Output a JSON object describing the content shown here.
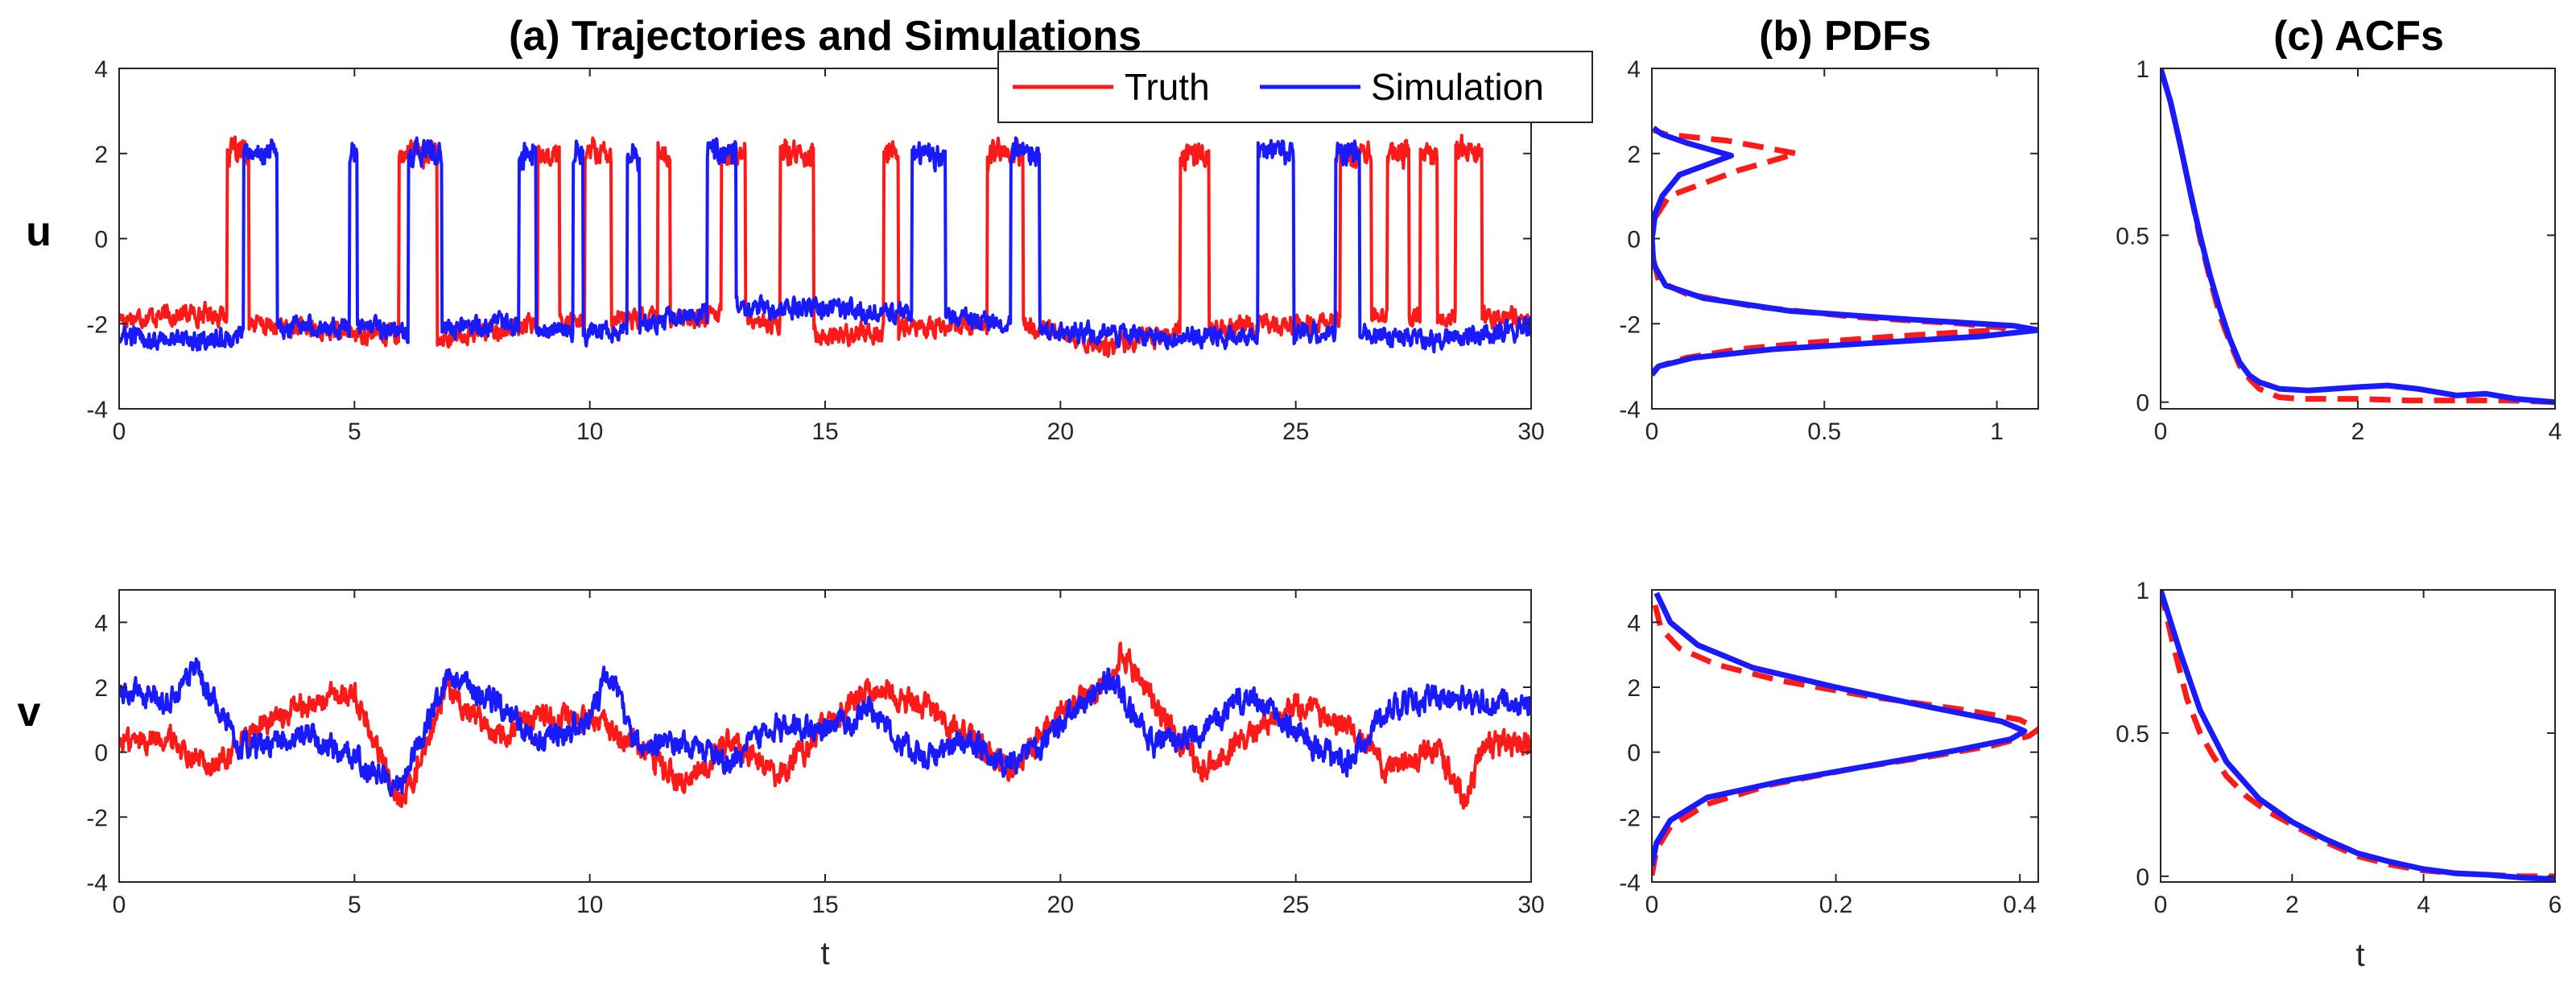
{
  "colors": {
    "truth": "#ff1a1a",
    "simulation": "#1a1aff",
    "axis": "#262626"
  },
  "row_labels": [
    "u",
    "v"
  ],
  "legend": {
    "entries": [
      "Truth",
      "Simulation"
    ]
  },
  "chart_data": [
    {
      "id": "traj_u",
      "type": "line",
      "panel": "a",
      "row": "u",
      "title": "(a) Trajectories and Simulations",
      "xlabel": "",
      "ylabel": "",
      "xlim": [
        0,
        30
      ],
      "ylim": [
        -4,
        4
      ],
      "xticks": [
        0,
        5,
        10,
        15,
        20,
        25,
        30
      ],
      "yticks": [
        -4,
        -2,
        0,
        2,
        4
      ],
      "series": [
        {
          "name": "Truth",
          "kind": "switch",
          "low": -2.0,
          "high": 2.0,
          "noise": 0.18,
          "intervals": [
            [
              2.3,
              2.75
            ],
            [
              5.95,
              6.75
            ],
            [
              8.9,
              9.35
            ],
            [
              9.9,
              10.45
            ],
            [
              11.45,
              11.7
            ],
            [
              12.8,
              13.3
            ],
            [
              14.05,
              14.75
            ],
            [
              16.25,
              16.55
            ],
            [
              18.45,
              19.2
            ],
            [
              22.55,
              23.15
            ],
            [
              25.95,
              26.6
            ],
            [
              26.95,
              27.4
            ],
            [
              27.65,
              28.0
            ],
            [
              28.4,
              28.95
            ]
          ],
          "low_drift": [
            [
              0,
              -1.85
            ],
            [
              2,
              -1.75
            ],
            [
              3,
              -2.05
            ],
            [
              5,
              -2.2
            ],
            [
              7,
              -2.3
            ],
            [
              9,
              -2.0
            ],
            [
              11,
              -1.9
            ],
            [
              13,
              -1.8
            ],
            [
              15,
              -2.3
            ],
            [
              17,
              -2.1
            ],
            [
              19,
              -2.0
            ],
            [
              21,
              -2.5
            ],
            [
              23,
              -2.1
            ],
            [
              25,
              -2.0
            ],
            [
              27,
              -1.8
            ],
            [
              30,
              -1.9
            ]
          ]
        },
        {
          "name": "Simulation",
          "kind": "switch",
          "low": -2.0,
          "high": 2.0,
          "noise": 0.18,
          "intervals": [
            [
              2.65,
              3.35
            ],
            [
              4.9,
              5.05
            ],
            [
              6.15,
              6.85
            ],
            [
              8.5,
              8.85
            ],
            [
              9.65,
              9.85
            ],
            [
              10.8,
              11.05
            ],
            [
              12.5,
              13.1
            ],
            [
              16.85,
              17.55
            ],
            [
              18.95,
              19.55
            ],
            [
              24.2,
              24.95
            ],
            [
              25.85,
              26.35
            ]
          ],
          "low_drift": [
            [
              0,
              -2.3
            ],
            [
              2,
              -2.4
            ],
            [
              4,
              -2.0
            ],
            [
              6,
              -2.2
            ],
            [
              8,
              -2.0
            ],
            [
              10,
              -2.3
            ],
            [
              12,
              -1.8
            ],
            [
              14,
              -1.6
            ],
            [
              16,
              -1.7
            ],
            [
              18,
              -1.9
            ],
            [
              20,
              -2.2
            ],
            [
              22,
              -2.3
            ],
            [
              24,
              -2.3
            ],
            [
              26,
              -2.2
            ],
            [
              28,
              -2.4
            ],
            [
              30,
              -2.1
            ]
          ]
        }
      ]
    },
    {
      "id": "traj_v",
      "type": "line",
      "panel": "a",
      "row": "v",
      "xlabel": "t",
      "ylabel": "",
      "xlim": [
        0,
        30
      ],
      "ylim": [
        -4,
        5
      ],
      "xticks": [
        0,
        5,
        10,
        15,
        20,
        25,
        30
      ],
      "yticks": [
        -4,
        -2,
        0,
        2,
        4
      ],
      "series": [
        {
          "name": "Truth",
          "kind": "wander",
          "noise": 0.3,
          "points": [
            [
              0,
              0.3
            ],
            [
              1,
              0.5
            ],
            [
              2,
              -0.5
            ],
            [
              3,
              0.8
            ],
            [
              4,
              1.5
            ],
            [
              5,
              1.8
            ],
            [
              6,
              -1.6
            ],
            [
              7,
              1.9
            ],
            [
              8,
              0.6
            ],
            [
              9,
              1.2
            ],
            [
              10,
              1.0
            ],
            [
              11,
              0.2
            ],
            [
              12,
              -1.0
            ],
            [
              13,
              0.4
            ],
            [
              14,
              -0.8
            ],
            [
              15,
              0.8
            ],
            [
              16,
              2.0
            ],
            [
              17,
              1.5
            ],
            [
              18,
              0.5
            ],
            [
              19,
              -0.5
            ],
            [
              20,
              1.2
            ],
            [
              21,
              2.2
            ],
            [
              21.3,
              3.2
            ],
            [
              22,
              1.5
            ],
            [
              23,
              -0.6
            ],
            [
              24,
              0.5
            ],
            [
              25,
              1.5
            ],
            [
              26,
              0.8
            ],
            [
              27,
              -0.5
            ],
            [
              28,
              0.2
            ],
            [
              28.6,
              -1.5
            ],
            [
              29,
              0.3
            ],
            [
              30,
              0.2
            ]
          ]
        },
        {
          "name": "Simulation",
          "kind": "wander",
          "noise": 0.3,
          "points": [
            [
              0,
              2.0
            ],
            [
              1,
              1.5
            ],
            [
              1.6,
              2.7
            ],
            [
              2.5,
              0.2
            ],
            [
              3,
              0.1
            ],
            [
              4,
              0.6
            ],
            [
              5,
              -0.2
            ],
            [
              6,
              -1.0
            ],
            [
              7,
              2.4
            ],
            [
              8,
              1.5
            ],
            [
              9,
              0.3
            ],
            [
              10,
              1.0
            ],
            [
              10.4,
              2.5
            ],
            [
              11,
              0.2
            ],
            [
              12,
              0.3
            ],
            [
              13,
              -0.3
            ],
            [
              14,
              0.8
            ],
            [
              15,
              0.6
            ],
            [
              16,
              1.3
            ],
            [
              17,
              -0.2
            ],
            [
              18,
              0.4
            ],
            [
              19,
              -0.5
            ],
            [
              20,
              0.8
            ],
            [
              21,
              2.3
            ],
            [
              22,
              0.2
            ],
            [
              23,
              0.6
            ],
            [
              24,
              1.8
            ],
            [
              25,
              0.6
            ],
            [
              26,
              -0.4
            ],
            [
              27,
              1.3
            ],
            [
              28,
              1.8
            ],
            [
              29,
              1.5
            ],
            [
              30,
              1.4
            ]
          ]
        }
      ]
    },
    {
      "id": "pdf_u",
      "type": "line",
      "panel": "b",
      "row": "u",
      "title": "(b) PDFs",
      "xlabel": "",
      "ylabel": "",
      "xlim": [
        0,
        1.12
      ],
      "ylim": [
        -4,
        4
      ],
      "xticks": [
        0,
        0.5,
        1
      ],
      "yticks": [
        -4,
        -2,
        0,
        2,
        4
      ],
      "series": [
        {
          "name": "Truth",
          "dashed": true,
          "x": [
            0,
            0.02,
            0.1,
            0.25,
            0.45,
            0.7,
            0.9,
            1.0,
            1.02,
            0.9,
            0.6,
            0.3,
            0.1,
            0.02,
            0.005,
            0,
            0.01,
            0.05,
            0.25,
            0.42,
            0.22,
            0.04,
            0.005
          ],
          "y": [
            -3.15,
            -3.0,
            -2.8,
            -2.6,
            -2.45,
            -2.3,
            -2.2,
            -2.15,
            -2.1,
            -2.0,
            -1.85,
            -1.6,
            -1.3,
            -1.0,
            -0.5,
            0,
            0.5,
            1.0,
            1.6,
            2.0,
            2.3,
            2.45,
            2.55
          ]
        },
        {
          "name": "Simulation",
          "dashed": false,
          "x": [
            0,
            0.02,
            0.12,
            0.35,
            0.65,
            0.95,
            1.12,
            1.05,
            0.75,
            0.4,
            0.15,
            0.04,
            0.005,
            0,
            0.01,
            0.03,
            0.08,
            0.23,
            0.1,
            0.03,
            0.005
          ],
          "y": [
            -3.2,
            -3.0,
            -2.8,
            -2.6,
            -2.45,
            -2.3,
            -2.15,
            -2.05,
            -1.9,
            -1.7,
            -1.4,
            -1.1,
            -0.6,
            0,
            0.6,
            1.0,
            1.5,
            1.95,
            2.25,
            2.45,
            2.6
          ]
        }
      ]
    },
    {
      "id": "pdf_v",
      "type": "line",
      "panel": "b",
      "row": "v",
      "xlabel": "",
      "ylabel": "",
      "xlim": [
        0,
        0.42
      ],
      "ylim": [
        -4,
        5
      ],
      "xticks": [
        0,
        0.2,
        0.4
      ],
      "yticks": [
        -4,
        -2,
        0,
        2,
        4
      ],
      "series": [
        {
          "name": "Truth",
          "dashed": true,
          "x": [
            0,
            0.005,
            0.02,
            0.06,
            0.13,
            0.22,
            0.31,
            0.37,
            0.41,
            0.42,
            0.4,
            0.34,
            0.24,
            0.14,
            0.07,
            0.03,
            0.01,
            0.003
          ],
          "y": [
            -3.8,
            -3.0,
            -2.3,
            -1.6,
            -1.0,
            -0.5,
            -0.1,
            0.2,
            0.5,
            0.7,
            1.0,
            1.3,
            1.7,
            2.2,
            2.7,
            3.2,
            3.8,
            4.6
          ]
        },
        {
          "name": "Simulation",
          "dashed": false,
          "x": [
            0,
            0.005,
            0.02,
            0.06,
            0.14,
            0.24,
            0.33,
            0.39,
            0.405,
            0.38,
            0.3,
            0.2,
            0.11,
            0.05,
            0.02,
            0.005
          ],
          "y": [
            -3.5,
            -2.8,
            -2.1,
            -1.4,
            -0.9,
            -0.4,
            0.05,
            0.4,
            0.65,
            0.95,
            1.4,
            2.0,
            2.6,
            3.3,
            4.0,
            4.9
          ]
        }
      ]
    },
    {
      "id": "acf_u",
      "type": "line",
      "panel": "c",
      "row": "u",
      "title": "(c) ACFs",
      "xlabel": "",
      "ylabel": "",
      "xlim": [
        0,
        4
      ],
      "ylim": [
        -0.02,
        1
      ],
      "xticks": [
        0,
        2,
        4
      ],
      "yticks": [
        0,
        0.5,
        1
      ],
      "series": [
        {
          "name": "Truth",
          "dashed": true,
          "x": [
            0,
            0.1,
            0.2,
            0.3,
            0.4,
            0.5,
            0.6,
            0.7,
            0.8,
            0.9,
            1.0,
            1.2,
            1.4,
            2.0,
            2.5,
            3.0,
            3.5,
            4.0
          ],
          "y": [
            1,
            0.9,
            0.77,
            0.63,
            0.49,
            0.37,
            0.26,
            0.18,
            0.11,
            0.07,
            0.04,
            0.015,
            0.01,
            0.01,
            0.005,
            0.005,
            0.005,
            0.0
          ]
        },
        {
          "name": "Simulation",
          "dashed": false,
          "x": [
            0,
            0.1,
            0.2,
            0.3,
            0.4,
            0.5,
            0.6,
            0.7,
            0.8,
            0.9,
            1.0,
            1.2,
            1.5,
            2.0,
            2.3,
            2.6,
            3.0,
            3.3,
            3.6,
            4.0
          ],
          "y": [
            1,
            0.9,
            0.77,
            0.63,
            0.5,
            0.38,
            0.28,
            0.19,
            0.12,
            0.08,
            0.06,
            0.04,
            0.035,
            0.045,
            0.05,
            0.04,
            0.02,
            0.025,
            0.01,
            0.0
          ]
        }
      ]
    },
    {
      "id": "acf_v",
      "type": "line",
      "panel": "c",
      "row": "v",
      "xlabel": "t",
      "ylabel": "",
      "xlim": [
        0,
        6
      ],
      "ylim": [
        -0.02,
        1
      ],
      "xticks": [
        0,
        2,
        4,
        6
      ],
      "yticks": [
        0,
        0.5,
        1
      ],
      "series": [
        {
          "name": "Truth",
          "dashed": true,
          "x": [
            0,
            0.2,
            0.4,
            0.6,
            0.8,
            1.0,
            1.3,
            1.6,
            2.0,
            2.5,
            3.0,
            3.5,
            4.0,
            4.5,
            5.0,
            5.5,
            6.0
          ],
          "y": [
            1,
            0.8,
            0.62,
            0.5,
            0.42,
            0.35,
            0.28,
            0.23,
            0.18,
            0.12,
            0.07,
            0.04,
            0.02,
            0.01,
            0.005,
            0.0,
            0.0
          ]
        },
        {
          "name": "Simulation",
          "dashed": false,
          "x": [
            0,
            0.3,
            0.6,
            1.0,
            1.5,
            2.0,
            2.5,
            3.0,
            3.5,
            4.0,
            4.5,
            5.0,
            5.5,
            6.0
          ],
          "y": [
            1,
            0.78,
            0.58,
            0.4,
            0.27,
            0.19,
            0.13,
            0.08,
            0.05,
            0.025,
            0.01,
            0.005,
            -0.005,
            -0.01
          ]
        }
      ]
    }
  ]
}
